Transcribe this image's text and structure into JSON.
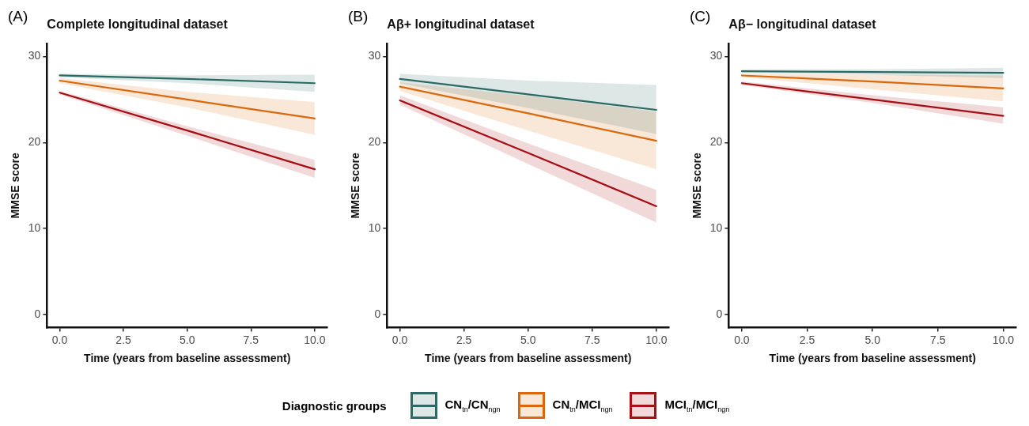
{
  "chart_data": [
    {
      "type": "line",
      "title": "Complete longitudinal dataset",
      "annotations": [
        "(A)"
      ],
      "xlabel": "Time (years from baseline assessment)",
      "ylabel": "MMSE score",
      "legend": "bottom",
      "legend_title": "Diagnostic groups",
      "x": [
        0,
        5,
        10
      ],
      "series": [
        {
          "name": "CN$_{tn}$/CN$_{ngn}$",
          "color": "#2b6b63",
          "values": [
            27.8,
            27.4,
            26.9
          ],
          "lower": [
            27.6,
            26.9,
            25.9
          ],
          "upper": [
            28.0,
            27.8,
            27.9
          ]
        },
        {
          "name": "CN$_{tn}$/MCI$_{ngn}$",
          "color": "#d9690f",
          "values": [
            27.2,
            25.0,
            22.8
          ],
          "lower": [
            26.9,
            24.1,
            20.9
          ],
          "upper": [
            27.5,
            25.9,
            24.7
          ]
        },
        {
          "name": "MCI$_{tn}$/MCI$_{ngn}$",
          "color": "#a50f15",
          "values": [
            25.8,
            21.4,
            16.9
          ],
          "lower": [
            25.6,
            20.8,
            15.9
          ],
          "upper": [
            26.0,
            21.9,
            18.0
          ]
        }
      ],
      "xlim": [
        -0.5,
        10.5
      ],
      "xticks": [
        {
          "value": 0,
          "label": "0.0"
        },
        {
          "value": 2.5,
          "label": "2.5"
        },
        {
          "value": 5,
          "label": "5.0"
        },
        {
          "value": 7.5,
          "label": "7.5"
        },
        {
          "value": 10,
          "label": "10.0"
        }
      ],
      "ylim": [
        -1.5,
        31.5
      ],
      "yticks": [
        0,
        10,
        20,
        30
      ]
    },
    {
      "type": "line",
      "title": "Aβ+ longitudinal dataset",
      "annotations": [
        "(B)"
      ],
      "xlabel": "Time (years from baseline assessment)",
      "ylabel": "MMSE score",
      "x": [
        0,
        5,
        10
      ],
      "series": [
        {
          "color": "#2b6b63",
          "values": [
            27.4,
            25.6,
            23.8
          ],
          "lower": [
            26.9,
            24.0,
            21.0
          ],
          "upper": [
            28.0,
            27.2,
            26.7
          ]
        },
        {
          "color": "#d9690f",
          "values": [
            26.5,
            23.4,
            20.2
          ],
          "lower": [
            26.0,
            21.4,
            16.9
          ],
          "upper": [
            27.0,
            25.4,
            23.6
          ]
        },
        {
          "color": "#a50f15",
          "values": [
            24.9,
            18.8,
            12.6
          ],
          "lower": [
            24.4,
            17.5,
            10.7
          ],
          "upper": [
            25.5,
            19.9,
            14.5
          ]
        }
      ],
      "xlim": [
        -0.5,
        10.5
      ],
      "xticks": [
        {
          "value": 0,
          "label": "0.0"
        },
        {
          "value": 2.5,
          "label": "2.5"
        },
        {
          "value": 5,
          "label": "5.0"
        },
        {
          "value": 7.5,
          "label": "7.5"
        },
        {
          "value": 10,
          "label": "10.0"
        }
      ],
      "ylim": [
        -1.5,
        31.5
      ],
      "yticks": [
        0,
        10,
        20,
        30
      ]
    },
    {
      "type": "line",
      "title": "Aβ− longitudinal dataset",
      "annotations": [
        "(C)"
      ],
      "xlabel": "Time (years from baseline assessment)",
      "ylabel": "MMSE score",
      "x": [
        0,
        5,
        10
      ],
      "series": [
        {
          "color": "#2b6b63",
          "values": [
            28.3,
            28.2,
            28.1
          ],
          "lower": [
            28.1,
            27.9,
            27.5
          ],
          "upper": [
            28.5,
            28.5,
            28.7
          ]
        },
        {
          "color": "#d9690f",
          "values": [
            27.8,
            27.1,
            26.3
          ],
          "lower": [
            27.6,
            26.2,
            24.8
          ],
          "upper": [
            28.0,
            27.9,
            27.8
          ]
        },
        {
          "color": "#a50f15",
          "values": [
            26.9,
            25.0,
            23.1
          ],
          "lower": [
            26.7,
            24.6,
            22.2
          ],
          "upper": [
            27.1,
            25.5,
            24.1
          ]
        }
      ],
      "xlim": [
        -0.5,
        10.5
      ],
      "xticks": [
        {
          "value": 0,
          "label": "0.0"
        },
        {
          "value": 2.5,
          "label": "2.5"
        },
        {
          "value": 5,
          "label": "5.0"
        },
        {
          "value": 7.5,
          "label": "7.5"
        },
        {
          "value": 10,
          "label": "10.0"
        }
      ],
      "ylim": [
        -1.5,
        31.5
      ],
      "yticks": [
        0,
        10,
        20,
        30
      ]
    }
  ]
}
